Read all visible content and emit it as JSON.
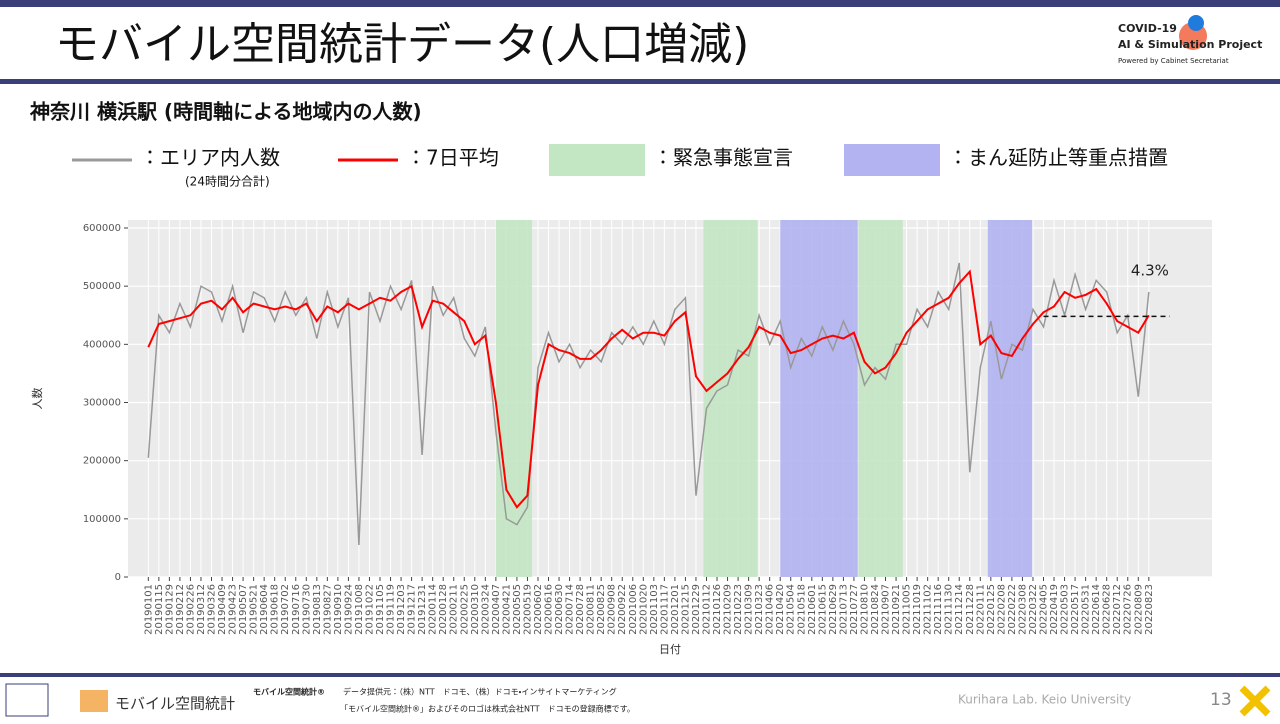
{
  "slide_title": "モバイル空間統計データ(人口増減)",
  "logo": {
    "line1": "COVID-19",
    "line2": "AI & Simulation Project",
    "line3": "Powered by Cabinet Secretariat"
  },
  "subtitle": "神奈川 横浜駅 (時間軸による地域内の人数)",
  "footer": {
    "brand": "モバイル空間統計",
    "brand_small": "モバイル空間統計®",
    "source": "データ提供元：（株）NTT　ドコモ、（株）ドコモ・インサイトマーケティング",
    "trademark": "「モバイル空間統計®」およびそのロゴは株式会社NTT　ドコモの登録商標です。",
    "lab": "Kurihara Lab. Keio University",
    "page": "13"
  },
  "chart_data": {
    "type": "line",
    "x_label": "日付",
    "y_label": "人数",
    "x": [
      "20190101",
      "20190115",
      "20190129",
      "20190212",
      "20190226",
      "20190312",
      "20190326",
      "20190409",
      "20190423",
      "20190507",
      "20190521",
      "20190604",
      "20190618",
      "20190702",
      "20190716",
      "20190730",
      "20190813",
      "20190827",
      "20190910",
      "20190924",
      "20191008",
      "20191022",
      "20191105",
      "20191119",
      "20191203",
      "20191217",
      "20191231",
      "20200114",
      "20200128",
      "20200211",
      "20200225",
      "20200310",
      "20200324",
      "20200407",
      "20200421",
      "20200505",
      "20200519",
      "20200602",
      "20200616",
      "20200630",
      "20200714",
      "20200728",
      "20200811",
      "20200825",
      "20200908",
      "20200922",
      "20201006",
      "20201020",
      "20201103",
      "20201117",
      "20201201",
      "20201215",
      "20201229",
      "20210112",
      "20210126",
      "20210209",
      "20210223",
      "20210309",
      "20210323",
      "20210406",
      "20210420",
      "20210504",
      "20210518",
      "20210601",
      "20210615",
      "20210629",
      "20210713",
      "20210727",
      "20210810",
      "20210824",
      "20210907",
      "20210921",
      "20211005",
      "20211019",
      "20211102",
      "20211116",
      "20211130",
      "20211214",
      "20211228",
      "20220111",
      "20220125",
      "20220208",
      "20220222",
      "20220308",
      "20220322",
      "20220405",
      "20220419",
      "20220503",
      "20220517",
      "20220531",
      "20220614",
      "20220628",
      "20220712",
      "20220726",
      "20220809",
      "20220823"
    ],
    "xlim": [
      "20181205",
      "20221115"
    ],
    "ylim": [
      0,
      600000
    ],
    "yticks": [
      0,
      100000,
      200000,
      300000,
      400000,
      500000,
      600000
    ],
    "series": [
      {
        "name": "：エリア内人数",
        "note": "(24時間分合計)",
        "color": "#999999",
        "values": [
          205000,
          450000,
          420000,
          470000,
          430000,
          500000,
          490000,
          440000,
          500000,
          420000,
          490000,
          480000,
          440000,
          490000,
          450000,
          480000,
          410000,
          490000,
          430000,
          480000,
          55000,
          490000,
          440000,
          500000,
          460000,
          510000,
          210000,
          500000,
          450000,
          480000,
          410000,
          380000,
          430000,
          250000,
          100000,
          90000,
          120000,
          360000,
          420000,
          370000,
          400000,
          360000,
          390000,
          370000,
          420000,
          400000,
          430000,
          400000,
          440000,
          400000,
          460000,
          480000,
          140000,
          290000,
          320000,
          330000,
          390000,
          380000,
          450000,
          400000,
          440000,
          360000,
          410000,
          380000,
          430000,
          390000,
          440000,
          400000,
          330000,
          360000,
          340000,
          400000,
          400000,
          460000,
          430000,
          490000,
          460000,
          540000,
          180000,
          360000,
          440000,
          340000,
          400000,
          390000,
          460000,
          430000,
          510000,
          450000,
          520000,
          460000,
          510000,
          490000,
          420000,
          450000,
          310000,
          490000
        ]
      },
      {
        "name": "：7日平均",
        "color": "#ff0000",
        "values": [
          395000,
          435000,
          440000,
          445000,
          450000,
          470000,
          475000,
          460000,
          480000,
          455000,
          470000,
          465000,
          460000,
          465000,
          460000,
          470000,
          440000,
          465000,
          455000,
          470000,
          460000,
          470000,
          480000,
          475000,
          490000,
          500000,
          430000,
          475000,
          470000,
          455000,
          440000,
          400000,
          415000,
          300000,
          150000,
          120000,
          140000,
          330000,
          400000,
          390000,
          385000,
          375000,
          375000,
          390000,
          410000,
          425000,
          410000,
          420000,
          420000,
          415000,
          440000,
          455000,
          345000,
          320000,
          335000,
          350000,
          375000,
          395000,
          430000,
          420000,
          415000,
          385000,
          390000,
          400000,
          410000,
          415000,
          410000,
          420000,
          370000,
          350000,
          360000,
          385000,
          420000,
          440000,
          460000,
          470000,
          480000,
          505000,
          525000,
          400000,
          415000,
          385000,
          380000,
          410000,
          435000,
          455000,
          465000,
          490000,
          480000,
          485000,
          495000,
          470000,
          440000,
          430000,
          420000,
          450000
        ]
      }
    ],
    "periods": [
      {
        "name": "：緊急事態宣言",
        "color": "#c3e6c3",
        "spans": [
          [
            "20200407",
            "20200525"
          ],
          [
            "20210108",
            "20210321"
          ],
          [
            "20210802",
            "20210930"
          ]
        ]
      },
      {
        "name": "：まん延防止等重点措置",
        "color": "#b3b3f2",
        "spans": [
          [
            "20210420",
            "20210801"
          ],
          [
            "20220121",
            "20220321"
          ]
        ]
      }
    ],
    "baseline": {
      "value": 448000,
      "start": "20220405",
      "end": "20220920"
    },
    "annotation": "4.3%",
    "grid": true
  }
}
